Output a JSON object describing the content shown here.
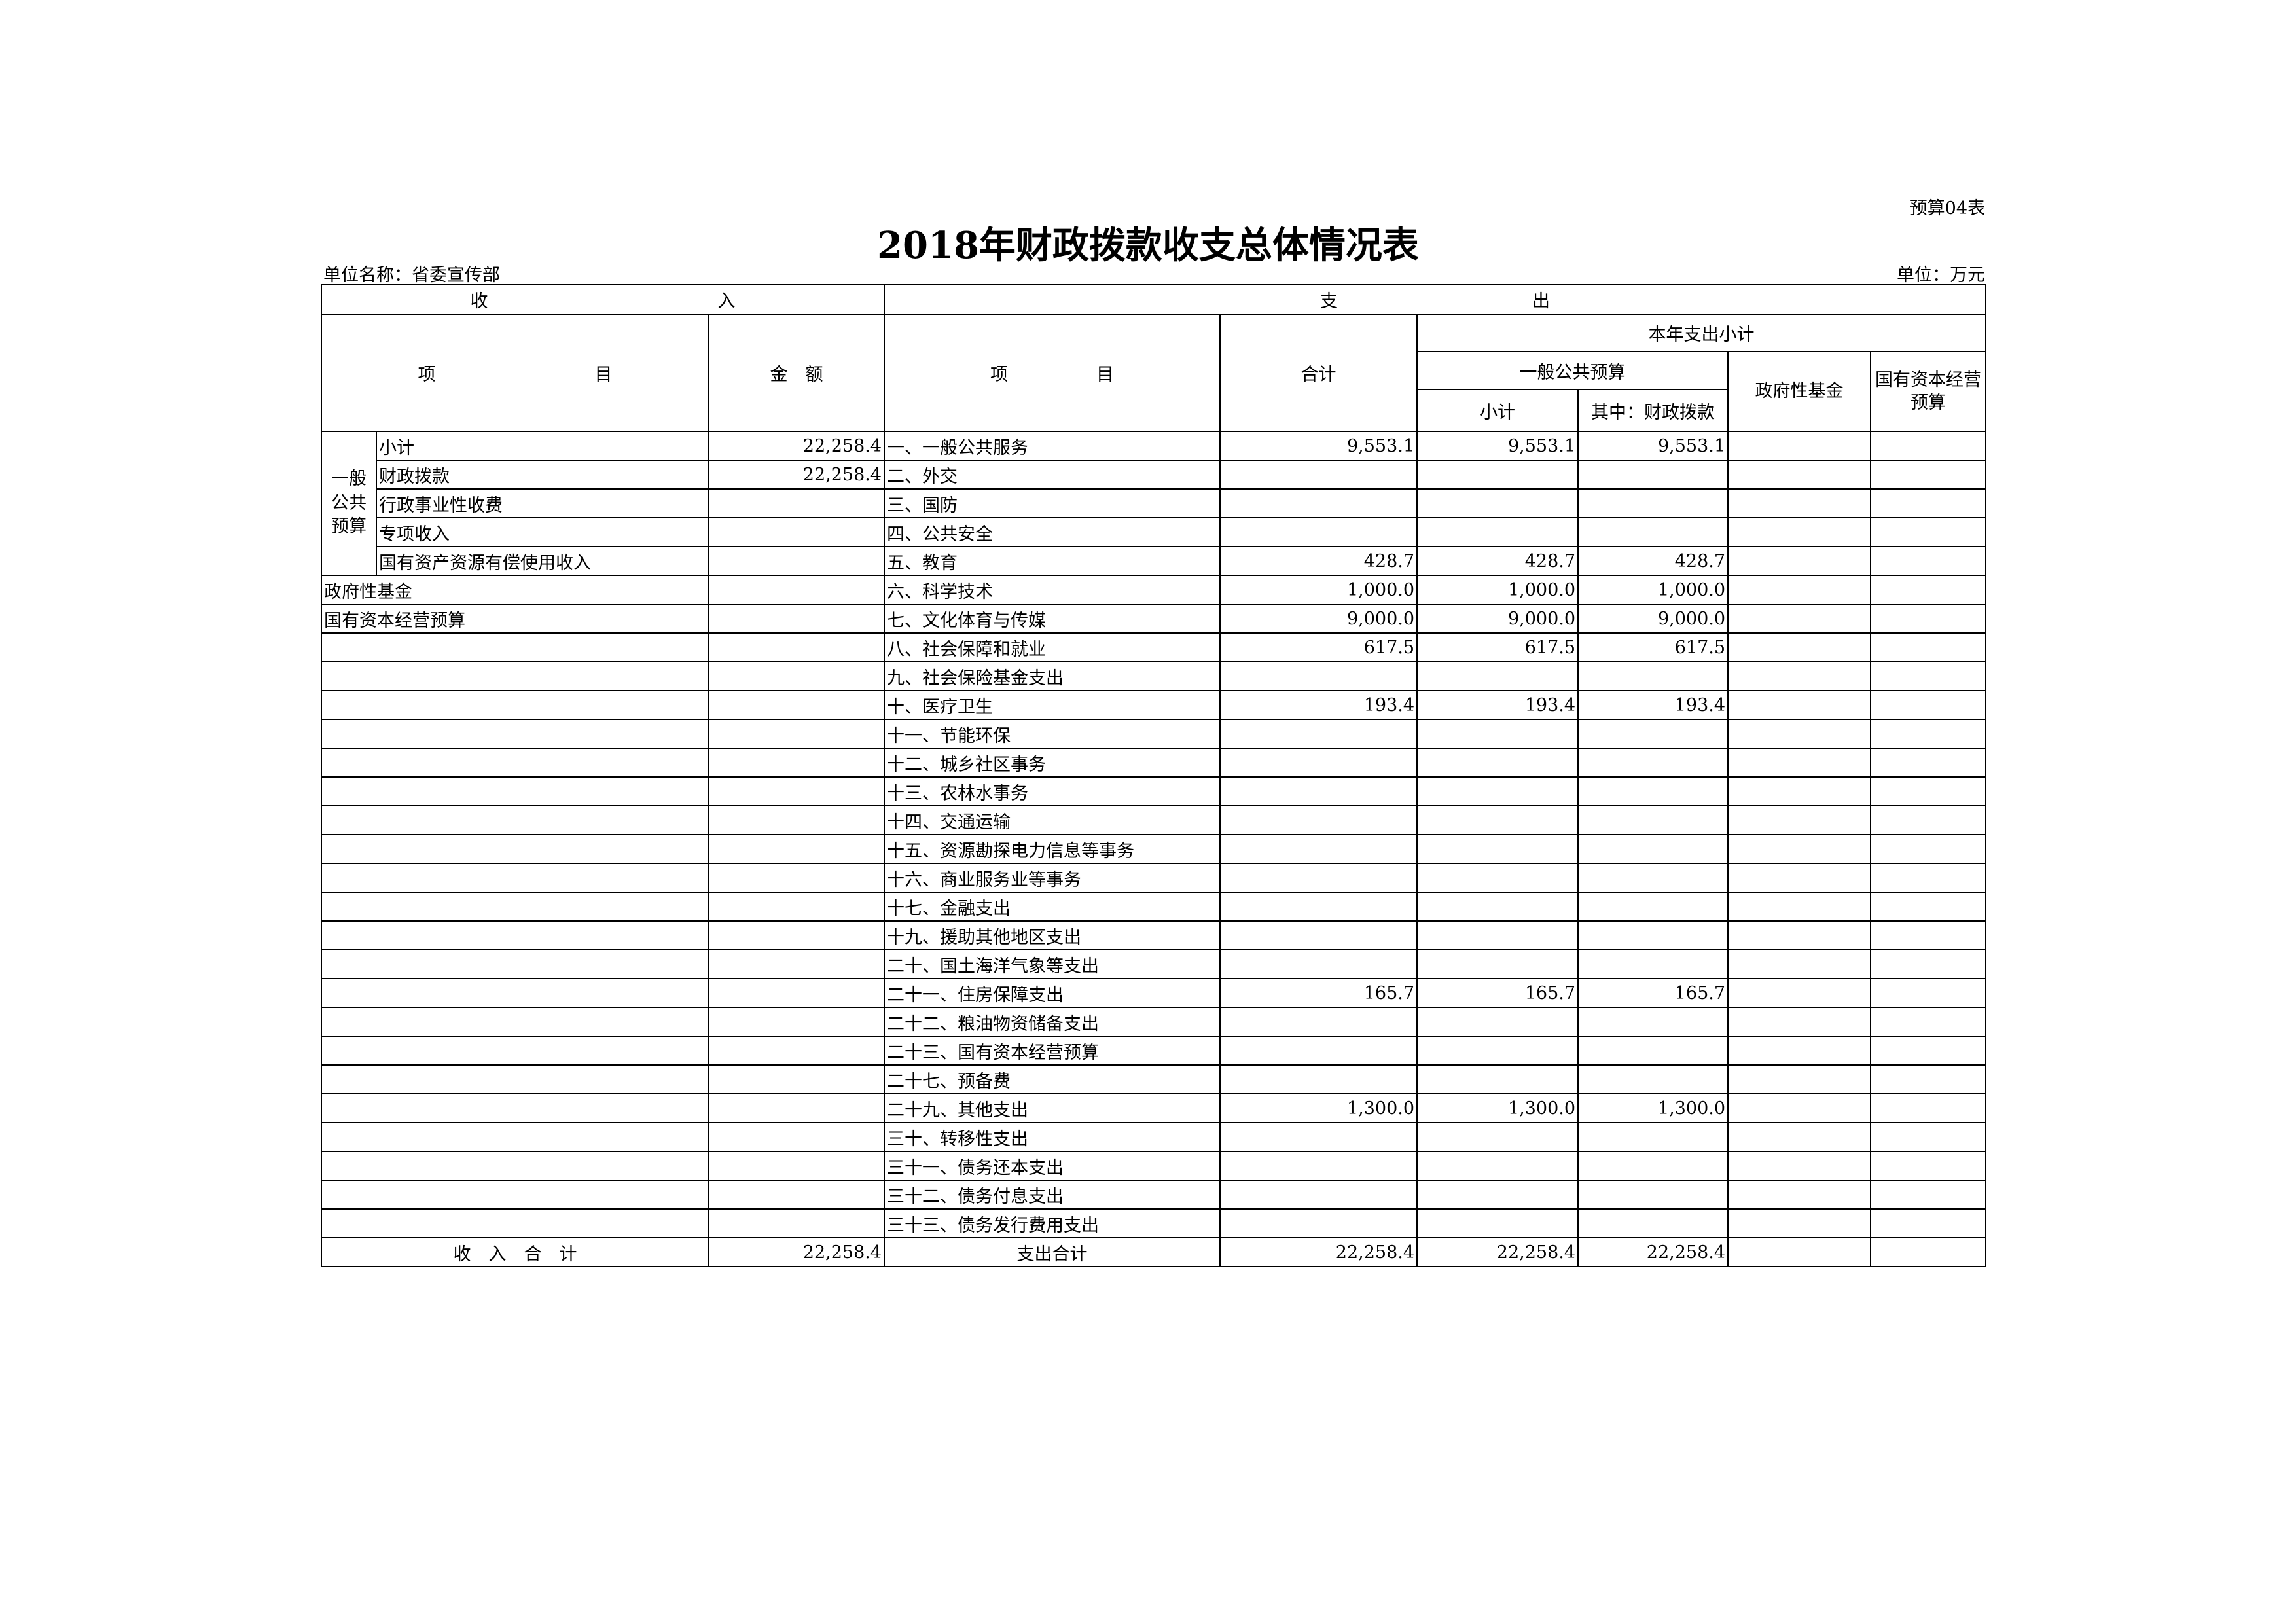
{
  "form_no": "预算04表",
  "title": "2018年财政拨款收支总体情况表",
  "unit_name": "单位名称：省委宣传部",
  "unit": "单位：万元",
  "header": {
    "income": "收　　　　　　　　　　　　　入",
    "expenditure": "支　　　　　　　　　　　出",
    "item": "项　　　　　　　　　目",
    "amount": "金　额",
    "item2": "项　　　　　目",
    "total": "合计",
    "year_subtotal": "本年支出小计",
    "general_budget": "一般公共预算",
    "subtotal": "小计",
    "of_which_fiscal": "其中：财政拨款",
    "gov_fund": "政府性基金",
    "state_capital": "国有资本经营预算"
  },
  "income_group": "一般公共预算",
  "rows": [
    {
      "inc": "小计",
      "amt": "22,258.4",
      "exp": "一、一般公共服务",
      "v": [
        "9,553.1",
        "9,553.1",
        "9,553.1",
        "",
        ""
      ]
    },
    {
      "inc": "财政拨款",
      "amt": "22,258.4",
      "exp": "二、外交",
      "v": [
        "",
        "",
        "",
        "",
        ""
      ]
    },
    {
      "inc": "行政事业性收费",
      "amt": "",
      "exp": "三、国防",
      "v": [
        "",
        "",
        "",
        "",
        ""
      ]
    },
    {
      "inc": "专项收入",
      "amt": "",
      "exp": "四、公共安全",
      "v": [
        "",
        "",
        "",
        "",
        ""
      ]
    },
    {
      "inc": "国有资产资源有偿使用收入",
      "amt": "",
      "exp": "五、教育",
      "v": [
        "428.7",
        "428.7",
        "428.7",
        "",
        ""
      ]
    },
    {
      "inc": "政府性基金",
      "amt": "",
      "exp": "六、科学技术",
      "v": [
        "1,000.0",
        "1,000.0",
        "1,000.0",
        "",
        ""
      ]
    },
    {
      "inc": "国有资本经营预算",
      "amt": "",
      "exp": "七、文化体育与传媒",
      "v": [
        "9,000.0",
        "9,000.0",
        "9,000.0",
        "",
        ""
      ]
    },
    {
      "inc": "",
      "amt": "",
      "exp": "八、社会保障和就业",
      "v": [
        "617.5",
        "617.5",
        "617.5",
        "",
        ""
      ]
    },
    {
      "inc": "",
      "amt": "",
      "exp": "九、社会保险基金支出",
      "v": [
        "",
        "",
        "",
        "",
        ""
      ]
    },
    {
      "inc": "",
      "amt": "",
      "exp": "十、医疗卫生",
      "v": [
        "193.4",
        "193.4",
        "193.4",
        "",
        ""
      ]
    },
    {
      "inc": "",
      "amt": "",
      "exp": "十一、节能环保",
      "v": [
        "",
        "",
        "",
        "",
        ""
      ]
    },
    {
      "inc": "",
      "amt": "",
      "exp": "十二、城乡社区事务",
      "v": [
        "",
        "",
        "",
        "",
        ""
      ]
    },
    {
      "inc": "",
      "amt": "",
      "exp": "十三、农林水事务",
      "v": [
        "",
        "",
        "",
        "",
        ""
      ]
    },
    {
      "inc": "",
      "amt": "",
      "exp": "十四、交通运输",
      "v": [
        "",
        "",
        "",
        "",
        ""
      ]
    },
    {
      "inc": "",
      "amt": "",
      "exp": "十五、资源勘探电力信息等事务",
      "v": [
        "",
        "",
        "",
        "",
        ""
      ]
    },
    {
      "inc": "",
      "amt": "",
      "exp": "十六、商业服务业等事务",
      "v": [
        "",
        "",
        "",
        "",
        ""
      ]
    },
    {
      "inc": "",
      "amt": "",
      "exp": "十七、金融支出",
      "v": [
        "",
        "",
        "",
        "",
        ""
      ]
    },
    {
      "inc": "",
      "amt": "",
      "exp": "十九、援助其他地区支出",
      "v": [
        "",
        "",
        "",
        "",
        ""
      ]
    },
    {
      "inc": "",
      "amt": "",
      "exp": "二十、国土海洋气象等支出",
      "v": [
        "",
        "",
        "",
        "",
        ""
      ]
    },
    {
      "inc": "",
      "amt": "",
      "exp": "二十一、住房保障支出",
      "v": [
        "165.7",
        "165.7",
        "165.7",
        "",
        ""
      ]
    },
    {
      "inc": "",
      "amt": "",
      "exp": "二十二、粮油物资储备支出",
      "v": [
        "",
        "",
        "",
        "",
        ""
      ]
    },
    {
      "inc": "",
      "amt": "",
      "exp": "二十三、国有资本经营预算",
      "v": [
        "",
        "",
        "",
        "",
        ""
      ]
    },
    {
      "inc": "",
      "amt": "",
      "exp": "二十七、预备费",
      "v": [
        "",
        "",
        "",
        "",
        ""
      ]
    },
    {
      "inc": "",
      "amt": "",
      "exp": "二十九、其他支出",
      "v": [
        "1,300.0",
        "1,300.0",
        "1,300.0",
        "",
        ""
      ]
    },
    {
      "inc": "",
      "amt": "",
      "exp": "三十、转移性支出",
      "v": [
        "",
        "",
        "",
        "",
        ""
      ]
    },
    {
      "inc": "",
      "amt": "",
      "exp": "三十一、债务还本支出",
      "v": [
        "",
        "",
        "",
        "",
        ""
      ]
    },
    {
      "inc": "",
      "amt": "",
      "exp": "三十二、债务付息支出",
      "v": [
        "",
        "",
        "",
        "",
        ""
      ]
    },
    {
      "inc": "",
      "amt": "",
      "exp": "三十三、债务发行费用支出",
      "v": [
        "",
        "",
        "",
        "",
        ""
      ]
    }
  ],
  "totals": {
    "income_label": "收　入　合　计",
    "income_amount": "22,258.4",
    "exp_label": "支出合计",
    "v": [
      "22,258.4",
      "22,258.4",
      "22,258.4",
      "",
      ""
    ]
  }
}
